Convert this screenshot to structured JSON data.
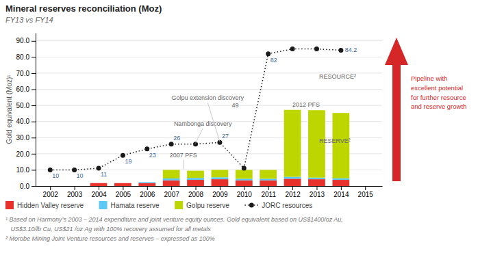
{
  "chart_data": {
    "type": "bar",
    "stacked": true,
    "title": "Mineral reserves reconciliation (Moz)",
    "subtitle": "FY13 vs FY14",
    "y_label": "Gold equivalent (Moz)¹",
    "xlim": [
      2001.4,
      2015.7
    ],
    "xticks": [
      2002,
      2003,
      2004,
      2005,
      2006,
      2007,
      2008,
      2009,
      2010,
      2011,
      2012,
      2013,
      2014,
      2015
    ],
    "ylim": [
      0,
      95
    ],
    "yticks": [
      {
        "value": 0,
        "label": "0.0"
      },
      {
        "value": 10,
        "label": "10.0"
      },
      {
        "value": 20,
        "label": "20.0"
      },
      {
        "value": 30,
        "label": "30.0"
      },
      {
        "value": 40,
        "label": "40.0"
      },
      {
        "value": 50,
        "label": "50.0"
      },
      {
        "value": 60,
        "label": "60.0"
      },
      {
        "value": 70,
        "label": "70.0"
      },
      {
        "value": 80,
        "label": "80.0"
      },
      {
        "value": 90,
        "label": "90.0"
      }
    ],
    "grid": true,
    "legend": "bottom",
    "series": [
      {
        "name": "Hidden Valley reserve",
        "color": "#e8312a",
        "x": [
          2004,
          2005,
          2006,
          2007,
          2008,
          2009,
          2010,
          2011,
          2012,
          2013,
          2014
        ],
        "values": [
          1.8,
          1.8,
          1.8,
          3.5,
          3.8,
          4.2,
          3.5,
          3.5,
          4.5,
          4.2,
          3.8
        ]
      },
      {
        "name": "Hamata reserve",
        "color": "#5bc8f5",
        "x": [
          2004,
          2005,
          2006,
          2007,
          2008,
          2009,
          2010,
          2011,
          2012,
          2013,
          2014
        ],
        "values": [
          0.0,
          0.0,
          0.6,
          1.2,
          1.2,
          1.2,
          1.0,
          1.0,
          1.2,
          1.0,
          1.0
        ]
      },
      {
        "name": "Golpu reserve",
        "color": "#bed600",
        "x": [
          2004,
          2005,
          2006,
          2007,
          2008,
          2009,
          2010,
          2011,
          2012,
          2013,
          2014
        ],
        "values": [
          0.0,
          0.0,
          0.0,
          5.3,
          4.5,
          4.6,
          5.5,
          5.5,
          41.5,
          41.8,
          40.5
        ]
      },
      {
        "name": "JORC resources",
        "type": "line",
        "color": "#1a1a1a",
        "marker": "circle",
        "line_style": "dotted",
        "data_labels": true,
        "x": [
          2002,
          2003,
          2004,
          2005,
          2006,
          2007,
          2008,
          2009,
          2010,
          2011,
          2012,
          2013,
          2014
        ],
        "values": [
          10,
          10,
          11,
          19,
          23,
          26,
          26,
          27,
          11,
          82,
          85,
          85,
          84.2
        ],
        "value_labels": [
          "10",
          "10",
          "11",
          "19",
          "23",
          "26",
          null,
          "27",
          null,
          "82",
          null,
          null,
          "84.2"
        ]
      }
    ],
    "annotations": [
      {
        "text": "2007 PFS",
        "x": 2007.5,
        "y": 14.5,
        "arrow_to": [
          2007.5,
          10.5
        ]
      },
      {
        "text": "Nambonga discovery",
        "x": 2008.3,
        "y": 34,
        "arrow_to": [
          2008,
          26.5
        ]
      },
      {
        "text": "Golpu extension discovery",
        "x": 2008.5,
        "y": 50,
        "arrow_to": [
          2009,
          27.5
        ]
      },
      {
        "text": "49",
        "x": 2009.5,
        "y": 50
      },
      {
        "text": "2012 PFS",
        "x": 2012.0,
        "y": 50.5
      },
      {
        "text": "RESOURCE²",
        "x": 2013.1,
        "y": 68
      },
      {
        "text": "RESERVE²",
        "x": 2013.1,
        "y": 28
      }
    ],
    "callout": "Pipeline with\nexcellent potential\nfor further resource\nand reserve growth",
    "footnotes": [
      "¹ Based on Harmony’s 2003 – 2014 expenditure and joint venture equity ounces. Gold equivalent based on US$1400/oz Au,",
      "   US$3.10/lb Cu, US$21 /oz Ag with 100% recovery assumed for all metals",
      "² Morobe Mining Joint Venture resources and reserves – expressed as 100%"
    ]
  }
}
